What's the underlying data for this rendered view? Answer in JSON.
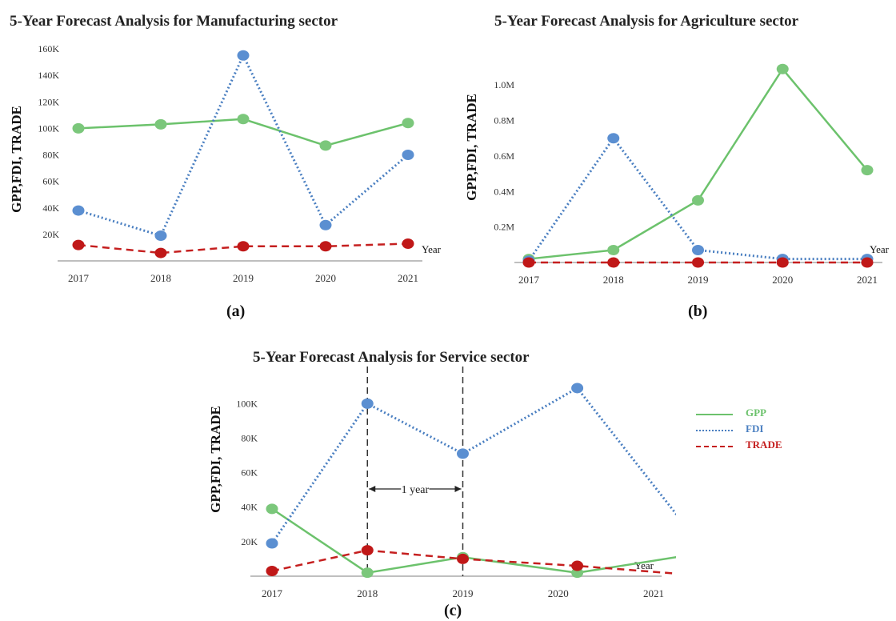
{
  "colors": {
    "GPP": "#6cc26c",
    "FDI": "#4a7fc1",
    "TRADE": "#c51f1f",
    "axis": "#bfbfbf",
    "text": "#222222"
  },
  "legend": {
    "items": [
      {
        "label": "GPP",
        "color": "#6cc26c",
        "style": "solid"
      },
      {
        "label": "FDI",
        "color": "#4a7fc1",
        "style": "dotted"
      },
      {
        "label": "TRADE",
        "color": "#c51f1f",
        "style": "dashed"
      }
    ]
  },
  "chart_data": [
    {
      "type": "line",
      "title": "5-Year Forecast Analysis for Manufacturing sector",
      "caption": "(a)",
      "ylabel": "GPP,FDI, TRADE",
      "xlabel": "Year",
      "categories": [
        "2017",
        "2018",
        "2019",
        "2020",
        "2021"
      ],
      "yticks": [
        "20K",
        "40K",
        "60K",
        "80K",
        "100K",
        "120K",
        "140K",
        "160K"
      ],
      "ytick_values": [
        20000,
        40000,
        60000,
        80000,
        100000,
        120000,
        140000,
        160000
      ],
      "ylim": [
        0,
        160000
      ],
      "series": [
        {
          "name": "GPP",
          "values": [
            100000,
            103000,
            107000,
            87000,
            104000
          ]
        },
        {
          "name": "FDI",
          "values": [
            38000,
            19000,
            155000,
            27000,
            80000
          ]
        },
        {
          "name": "TRADE",
          "values": [
            12000,
            6000,
            11000,
            11000,
            13000
          ]
        }
      ]
    },
    {
      "type": "line",
      "title": "5-Year Forecast Analysis for Agriculture sector",
      "caption": "(b)",
      "ylabel": "GPP,FDI, TRADE",
      "xlabel": "Year",
      "categories": [
        "2017",
        "2018",
        "2019",
        "2020",
        "2021"
      ],
      "yticks": [
        "0.2M",
        "0.4M",
        "0.6M",
        "0.8M",
        "1.0M"
      ],
      "ytick_values": [
        200000,
        400000,
        600000,
        800000,
        1000000
      ],
      "ylim": [
        0,
        1100000
      ],
      "series": [
        {
          "name": "GPP",
          "values": [
            20000,
            70000,
            350000,
            1090000,
            520000
          ]
        },
        {
          "name": "FDI",
          "values": [
            10000,
            700000,
            70000,
            20000,
            20000
          ]
        },
        {
          "name": "TRADE",
          "values": [
            0,
            0,
            0,
            0,
            0
          ]
        }
      ]
    },
    {
      "type": "line",
      "title": "5-Year Forecast Analysis for Service sector",
      "caption": "(c)",
      "ylabel": "GPP,FDI, TRADE",
      "xlabel": "Year",
      "categories": [
        "2017",
        "2018",
        "2019",
        "2020",
        "2021"
      ],
      "yticks": [
        "20K",
        "40K",
        "60K",
        "80K",
        "100K"
      ],
      "ytick_values": [
        20000,
        40000,
        60000,
        80000,
        100000
      ],
      "ylim": [
        0,
        115000
      ],
      "annotation": "1 year",
      "series": [
        {
          "name": "GPP",
          "x": [
            2017,
            2018,
            2019,
            2020.2,
            2021.35
          ],
          "values": [
            39000,
            2000,
            11000,
            2000,
            12000
          ]
        },
        {
          "name": "FDI",
          "x": [
            2017,
            2018,
            2019,
            2020.2,
            2021.35
          ],
          "values": [
            19000,
            100000,
            71000,
            109000,
            28000
          ]
        },
        {
          "name": "TRADE",
          "x": [
            2017,
            2018,
            2019,
            2020.2,
            2021.35
          ],
          "values": [
            3000,
            15000,
            10000,
            6000,
            1000
          ]
        }
      ]
    }
  ]
}
